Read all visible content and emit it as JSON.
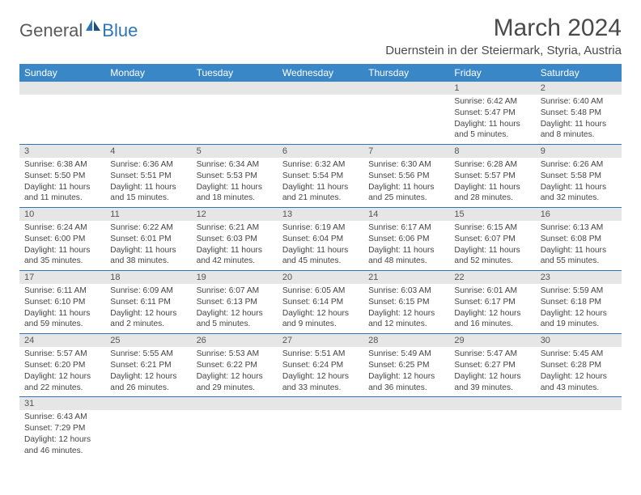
{
  "logo": {
    "word1": "General",
    "word2": "Blue"
  },
  "title": "March 2024",
  "location": "Duernstein in der Steiermark, Styria, Austria",
  "colors": {
    "header_bg": "#3a87c7",
    "header_text": "#ffffff",
    "daynum_bg": "#e6e6e6",
    "row_border": "#2e75b6",
    "logo_gray": "#5a5a5a",
    "logo_blue": "#2e75b6",
    "body_text": "#444444"
  },
  "weekdays": [
    "Sunday",
    "Monday",
    "Tuesday",
    "Wednesday",
    "Thursday",
    "Friday",
    "Saturday"
  ],
  "weeks": [
    [
      {
        "n": "",
        "sr": "",
        "ss": "",
        "dl": ""
      },
      {
        "n": "",
        "sr": "",
        "ss": "",
        "dl": ""
      },
      {
        "n": "",
        "sr": "",
        "ss": "",
        "dl": ""
      },
      {
        "n": "",
        "sr": "",
        "ss": "",
        "dl": ""
      },
      {
        "n": "",
        "sr": "",
        "ss": "",
        "dl": ""
      },
      {
        "n": "1",
        "sr": "Sunrise: 6:42 AM",
        "ss": "Sunset: 5:47 PM",
        "dl": "Daylight: 11 hours and 5 minutes."
      },
      {
        "n": "2",
        "sr": "Sunrise: 6:40 AM",
        "ss": "Sunset: 5:48 PM",
        "dl": "Daylight: 11 hours and 8 minutes."
      }
    ],
    [
      {
        "n": "3",
        "sr": "Sunrise: 6:38 AM",
        "ss": "Sunset: 5:50 PM",
        "dl": "Daylight: 11 hours and 11 minutes."
      },
      {
        "n": "4",
        "sr": "Sunrise: 6:36 AM",
        "ss": "Sunset: 5:51 PM",
        "dl": "Daylight: 11 hours and 15 minutes."
      },
      {
        "n": "5",
        "sr": "Sunrise: 6:34 AM",
        "ss": "Sunset: 5:53 PM",
        "dl": "Daylight: 11 hours and 18 minutes."
      },
      {
        "n": "6",
        "sr": "Sunrise: 6:32 AM",
        "ss": "Sunset: 5:54 PM",
        "dl": "Daylight: 11 hours and 21 minutes."
      },
      {
        "n": "7",
        "sr": "Sunrise: 6:30 AM",
        "ss": "Sunset: 5:56 PM",
        "dl": "Daylight: 11 hours and 25 minutes."
      },
      {
        "n": "8",
        "sr": "Sunrise: 6:28 AM",
        "ss": "Sunset: 5:57 PM",
        "dl": "Daylight: 11 hours and 28 minutes."
      },
      {
        "n": "9",
        "sr": "Sunrise: 6:26 AM",
        "ss": "Sunset: 5:58 PM",
        "dl": "Daylight: 11 hours and 32 minutes."
      }
    ],
    [
      {
        "n": "10",
        "sr": "Sunrise: 6:24 AM",
        "ss": "Sunset: 6:00 PM",
        "dl": "Daylight: 11 hours and 35 minutes."
      },
      {
        "n": "11",
        "sr": "Sunrise: 6:22 AM",
        "ss": "Sunset: 6:01 PM",
        "dl": "Daylight: 11 hours and 38 minutes."
      },
      {
        "n": "12",
        "sr": "Sunrise: 6:21 AM",
        "ss": "Sunset: 6:03 PM",
        "dl": "Daylight: 11 hours and 42 minutes."
      },
      {
        "n": "13",
        "sr": "Sunrise: 6:19 AM",
        "ss": "Sunset: 6:04 PM",
        "dl": "Daylight: 11 hours and 45 minutes."
      },
      {
        "n": "14",
        "sr": "Sunrise: 6:17 AM",
        "ss": "Sunset: 6:06 PM",
        "dl": "Daylight: 11 hours and 48 minutes."
      },
      {
        "n": "15",
        "sr": "Sunrise: 6:15 AM",
        "ss": "Sunset: 6:07 PM",
        "dl": "Daylight: 11 hours and 52 minutes."
      },
      {
        "n": "16",
        "sr": "Sunrise: 6:13 AM",
        "ss": "Sunset: 6:08 PM",
        "dl": "Daylight: 11 hours and 55 minutes."
      }
    ],
    [
      {
        "n": "17",
        "sr": "Sunrise: 6:11 AM",
        "ss": "Sunset: 6:10 PM",
        "dl": "Daylight: 11 hours and 59 minutes."
      },
      {
        "n": "18",
        "sr": "Sunrise: 6:09 AM",
        "ss": "Sunset: 6:11 PM",
        "dl": "Daylight: 12 hours and 2 minutes."
      },
      {
        "n": "19",
        "sr": "Sunrise: 6:07 AM",
        "ss": "Sunset: 6:13 PM",
        "dl": "Daylight: 12 hours and 5 minutes."
      },
      {
        "n": "20",
        "sr": "Sunrise: 6:05 AM",
        "ss": "Sunset: 6:14 PM",
        "dl": "Daylight: 12 hours and 9 minutes."
      },
      {
        "n": "21",
        "sr": "Sunrise: 6:03 AM",
        "ss": "Sunset: 6:15 PM",
        "dl": "Daylight: 12 hours and 12 minutes."
      },
      {
        "n": "22",
        "sr": "Sunrise: 6:01 AM",
        "ss": "Sunset: 6:17 PM",
        "dl": "Daylight: 12 hours and 16 minutes."
      },
      {
        "n": "23",
        "sr": "Sunrise: 5:59 AM",
        "ss": "Sunset: 6:18 PM",
        "dl": "Daylight: 12 hours and 19 minutes."
      }
    ],
    [
      {
        "n": "24",
        "sr": "Sunrise: 5:57 AM",
        "ss": "Sunset: 6:20 PM",
        "dl": "Daylight: 12 hours and 22 minutes."
      },
      {
        "n": "25",
        "sr": "Sunrise: 5:55 AM",
        "ss": "Sunset: 6:21 PM",
        "dl": "Daylight: 12 hours and 26 minutes."
      },
      {
        "n": "26",
        "sr": "Sunrise: 5:53 AM",
        "ss": "Sunset: 6:22 PM",
        "dl": "Daylight: 12 hours and 29 minutes."
      },
      {
        "n": "27",
        "sr": "Sunrise: 5:51 AM",
        "ss": "Sunset: 6:24 PM",
        "dl": "Daylight: 12 hours and 33 minutes."
      },
      {
        "n": "28",
        "sr": "Sunrise: 5:49 AM",
        "ss": "Sunset: 6:25 PM",
        "dl": "Daylight: 12 hours and 36 minutes."
      },
      {
        "n": "29",
        "sr": "Sunrise: 5:47 AM",
        "ss": "Sunset: 6:27 PM",
        "dl": "Daylight: 12 hours and 39 minutes."
      },
      {
        "n": "30",
        "sr": "Sunrise: 5:45 AM",
        "ss": "Sunset: 6:28 PM",
        "dl": "Daylight: 12 hours and 43 minutes."
      }
    ],
    [
      {
        "n": "31",
        "sr": "Sunrise: 6:43 AM",
        "ss": "Sunset: 7:29 PM",
        "dl": "Daylight: 12 hours and 46 minutes."
      },
      {
        "n": "",
        "sr": "",
        "ss": "",
        "dl": ""
      },
      {
        "n": "",
        "sr": "",
        "ss": "",
        "dl": ""
      },
      {
        "n": "",
        "sr": "",
        "ss": "",
        "dl": ""
      },
      {
        "n": "",
        "sr": "",
        "ss": "",
        "dl": ""
      },
      {
        "n": "",
        "sr": "",
        "ss": "",
        "dl": ""
      },
      {
        "n": "",
        "sr": "",
        "ss": "",
        "dl": ""
      }
    ]
  ]
}
